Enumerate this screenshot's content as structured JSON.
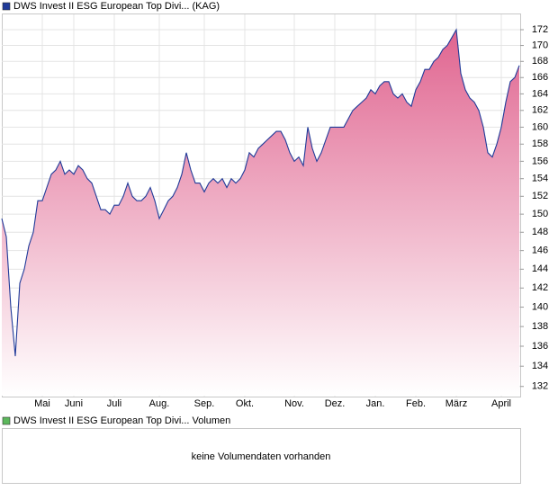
{
  "chart_data": [
    {
      "type": "area",
      "series": [
        {
          "name": "DWS Invest II ESG European Top Divi... (KAG)",
          "color": "#1f3a99",
          "fill_top": "#e06590",
          "fill_bottom": "#ffffff",
          "values": [
            149.5,
            147.5,
            140,
            135,
            142.5,
            144,
            146.5,
            148,
            151.5,
            151.5,
            153,
            154.5,
            155,
            156,
            154.5,
            155,
            154.5,
            155.5,
            155,
            154,
            153.5,
            152,
            150.5,
            150.5,
            150,
            151,
            151,
            152,
            153.5,
            152,
            151.5,
            151.5,
            152,
            153,
            151.5,
            149.5,
            150.5,
            151.5,
            152,
            153,
            154.5,
            157,
            155,
            153.5,
            153.5,
            152.5,
            153.5,
            154,
            153.5,
            154,
            153,
            154,
            153.5,
            154,
            155,
            157,
            156.5,
            157.5,
            158,
            158.5,
            159,
            159.5,
            159.5,
            158.5,
            157,
            156,
            156.5,
            155.5,
            160,
            157.5,
            156,
            157,
            158.5,
            160,
            160,
            160,
            160,
            161,
            162,
            162.5,
            163,
            163.5,
            164.5,
            164,
            165,
            165.5,
            165.5,
            164,
            163.5,
            164,
            163,
            162.5,
            164.5,
            165.5,
            167,
            167,
            168,
            168.5,
            169.5,
            170,
            171,
            172,
            166.5,
            164.5,
            163.5,
            163,
            162,
            160,
            157,
            156.5,
            158,
            160,
            163,
            165.5,
            166,
            167.5
          ]
        }
      ],
      "categories": [
        null,
        null,
        null,
        null,
        null,
        null,
        null,
        null,
        null,
        "Mai",
        null,
        null,
        null,
        null,
        null,
        null,
        "Juni",
        null,
        null,
        null,
        null,
        null,
        null,
        null,
        null,
        "Juli",
        null,
        null,
        null,
        null,
        null,
        null,
        null,
        null,
        null,
        "Aug.",
        null,
        null,
        null,
        null,
        null,
        null,
        null,
        null,
        null,
        "Sep.",
        null,
        null,
        null,
        null,
        null,
        null,
        null,
        null,
        "Okt.",
        null,
        null,
        null,
        null,
        null,
        null,
        null,
        null,
        null,
        null,
        "Nov.",
        null,
        null,
        null,
        null,
        null,
        null,
        null,
        null,
        "Dez.",
        null,
        null,
        null,
        null,
        null,
        null,
        null,
        null,
        "Jan.",
        null,
        null,
        null,
        null,
        null,
        null,
        null,
        null,
        "Feb.",
        null,
        null,
        null,
        null,
        null,
        null,
        null,
        null,
        "März",
        null,
        null,
        null,
        null,
        null,
        null,
        null,
        null,
        null,
        "April",
        null,
        null,
        null,
        null
      ],
      "log_scale": true,
      "ylim": [
        131.1,
        173.5
      ],
      "yticks": [
        132,
        134,
        136,
        138,
        140,
        142,
        144,
        146,
        148,
        150,
        152,
        154,
        156,
        158,
        160,
        162,
        164,
        166,
        168,
        170,
        172
      ],
      "grid": true
    },
    {
      "type": "bar",
      "series": [
        {
          "name": "DWS Invest II ESG European Top Divi... Volumen",
          "color": "#5cb85c",
          "values": []
        }
      ],
      "annotation": "keine Volumendaten vorhanden"
    }
  ]
}
